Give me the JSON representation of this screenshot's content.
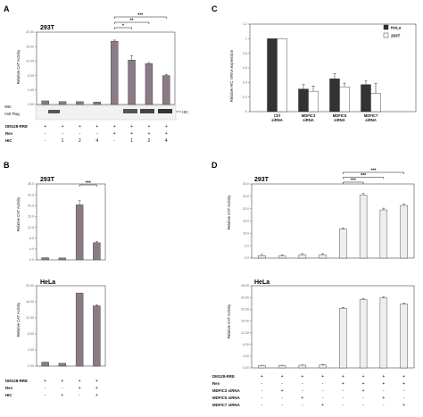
{
  "chart_data": [
    {
      "panel": "A",
      "cell_line": "293T",
      "type": "bar",
      "ylabel": "Relative CAT Activity",
      "yticks": [
        "0.00",
        "4.00",
        "8.00",
        "12.00",
        "16.00",
        "20.00"
      ],
      "ylim": [
        0,
        20
      ],
      "values": [
        1.0,
        0.8,
        0.8,
        0.7,
        17.5,
        12.3,
        11.3,
        8.0
      ],
      "errors": [
        0,
        0,
        0,
        0,
        0.3,
        1.2,
        0.3,
        0.3
      ],
      "bar_color": "#8b7b87",
      "rows": [
        {
          "label": "DM128-RRE",
          "symbols": [
            "+",
            "+",
            "+",
            "+",
            "+",
            "+",
            "+",
            "+"
          ]
        },
        {
          "label": "Rev",
          "symbols": [
            "-",
            "-",
            "-",
            "-",
            "+",
            "+",
            "+",
            "+"
          ]
        },
        {
          "label": "HIC",
          "symbols": [
            "-",
            "1",
            "2",
            "4",
            "-",
            "1",
            "2",
            "4"
          ]
        }
      ],
      "wb_labels": [
        "WB:",
        "Anti-Flag"
      ],
      "wb_band": "HIC",
      "significance": [
        "*",
        "**",
        "***"
      ]
    },
    {
      "panel": "B",
      "cell_line": "293T",
      "type": "bar",
      "ylabel": "Relative CAT Activity",
      "yticks": [
        "0.0",
        "4.0",
        "8.0",
        "12.0",
        "16.0",
        "20.0",
        "24.0",
        "28.0"
      ],
      "ylim": [
        0,
        28
      ],
      "values": [
        0.8,
        0.7,
        20.3,
        6.3
      ],
      "errors": [
        0,
        0,
        1.5,
        0.5
      ],
      "bar_color": "#8b7b87",
      "significance": [
        "***"
      ]
    },
    {
      "panel": "B",
      "cell_line": "HeLa",
      "type": "bar",
      "ylabel": "Relative CAT Activity",
      "yticks": [
        "0.00",
        "4.00",
        "8.00",
        "12.00",
        "16.00",
        "20.00"
      ],
      "ylim": [
        0,
        20
      ],
      "values": [
        1.0,
        0.7,
        18.2,
        15.0
      ],
      "errors": [
        0,
        0,
        0,
        0.3
      ],
      "bar_color": "#8b7b87",
      "rows": [
        {
          "label": "DM128-RRE",
          "symbols": [
            "+",
            "+",
            "+",
            "+"
          ]
        },
        {
          "label": "Rev",
          "symbols": [
            "-",
            "-",
            "+",
            "+"
          ]
        },
        {
          "label": "HIC",
          "symbols": [
            "-",
            "+",
            "-",
            "+"
          ]
        }
      ]
    },
    {
      "panel": "C",
      "type": "bar",
      "ylabel": "Relative HIC mRNA expression",
      "yticks": [
        "0",
        "0.2",
        "0.4",
        "0.6",
        "0.8",
        "1",
        "1.2"
      ],
      "ylim": [
        0,
        1.2
      ],
      "categories": [
        [
          "Ctrl",
          "siRNA"
        ],
        [
          "MDFIC3",
          "siRNA"
        ],
        [
          "MDFIC5",
          "siRNA"
        ],
        [
          "MDFIC7",
          "siRNA"
        ]
      ],
      "series": [
        {
          "name": "HeLa",
          "values": [
            1.0,
            0.31,
            0.45,
            0.37
          ],
          "errors": [
            0,
            0.06,
            0.07,
            0.05
          ],
          "color": "#333333"
        },
        {
          "name": "293T",
          "values": [
            1.0,
            0.28,
            0.34,
            0.25
          ],
          "errors": [
            0,
            0.07,
            0.05,
            0.14
          ],
          "color": "#ffffff"
        }
      ],
      "legend_position": "top-right"
    },
    {
      "panel": "D",
      "cell_line": "293T",
      "type": "bar",
      "ylabel": "Relative CAT Activity",
      "yticks": [
        "0.0",
        "5.0",
        "10.0",
        "15.0",
        "20.0",
        "25.0",
        "30.0"
      ],
      "ylim": [
        0,
        30
      ],
      "values": [
        1.0,
        0.9,
        1.3,
        1.3,
        11.8,
        25.5,
        19.5,
        21.3
      ],
      "errors": [
        0.5,
        0.4,
        0.5,
        0.5,
        0.4,
        0.6,
        0.7,
        0.6
      ],
      "bar_color": "#eeeeee",
      "significance": [
        "***",
        "***",
        "***"
      ]
    },
    {
      "panel": "D",
      "cell_line": "HeLa",
      "type": "bar",
      "ylabel": "Relative CAT Activity",
      "yticks": [
        "0.00",
        "4.00",
        "8.00",
        "12.00",
        "16.00",
        "20.00",
        "24.00",
        "28.00"
      ],
      "ylim": [
        0,
        28
      ],
      "values": [
        0.8,
        0.8,
        0.9,
        1.0,
        20.3,
        23.3,
        23.8,
        21.8
      ],
      "errors": [
        0.1,
        0.1,
        0.1,
        0.1,
        0.3,
        0.4,
        0.4,
        0.3
      ],
      "bar_color": "#eeeeee",
      "rows": [
        {
          "label": "DM128-RRE",
          "symbols": [
            "+",
            "+",
            "+",
            "+",
            "+",
            "+",
            "+",
            "+"
          ]
        },
        {
          "label": "Rev",
          "symbols": [
            "-",
            "-",
            "-",
            "-",
            "+",
            "+",
            "+",
            "+"
          ]
        },
        {
          "label": "MDFIC3 siRNA",
          "symbols": [
            "-",
            "+",
            "-",
            "-",
            "-",
            "+",
            "-",
            "-"
          ]
        },
        {
          "label": "MDFIC5 siRNA",
          "symbols": [
            "-",
            "-",
            "+",
            "-",
            "-",
            "-",
            "+",
            "-"
          ]
        },
        {
          "label": "MDFIC7 siRNA",
          "symbols": [
            "-",
            "-",
            "-",
            "+",
            "-",
            "-",
            "-",
            "+"
          ]
        }
      ]
    }
  ],
  "panel_letters": [
    "A",
    "B",
    "C",
    "D"
  ],
  "cell_lines": [
    "293T",
    "HeLa"
  ]
}
